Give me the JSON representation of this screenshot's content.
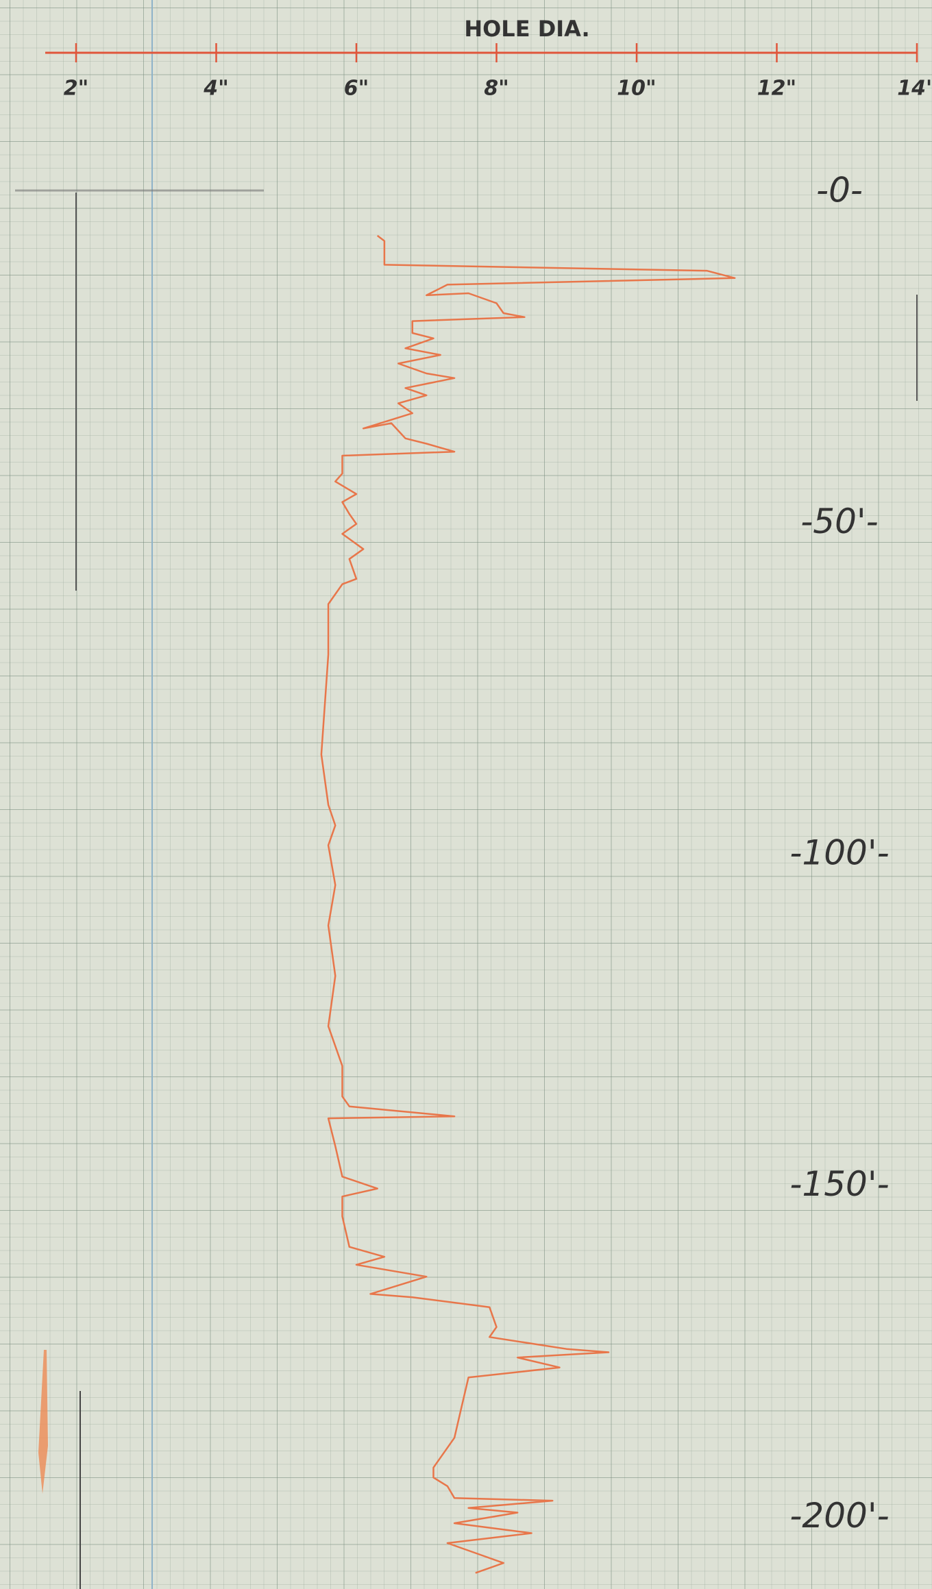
{
  "chart_data": {
    "type": "line",
    "x_label": "HOLE DIA.",
    "xlim": [
      2,
      14
    ],
    "xticks": [
      {
        "value": 2,
        "label": "2\""
      },
      {
        "value": 4,
        "label": "4\""
      },
      {
        "value": 6,
        "label": "6\""
      },
      {
        "value": 8,
        "label": "8\""
      },
      {
        "value": 10,
        "label": "10\""
      },
      {
        "value": 12,
        "label": "12\""
      },
      {
        "value": 14,
        "label": "14\""
      }
    ],
    "ylim": [
      0,
      210
    ],
    "y_inverted": true,
    "yticks": [
      {
        "value": 0,
        "label": "-0-"
      },
      {
        "value": 50,
        "label": "-50'-"
      },
      {
        "value": 100,
        "label": "-100'-"
      },
      {
        "value": 150,
        "label": "-150'-"
      },
      {
        "value": 200,
        "label": "-200'-"
      }
    ],
    "color": "#e8764a",
    "axis_color": "#e0553a",
    "x": [
      6.3,
      6.4,
      6.4,
      11.0,
      11.4,
      7.3,
      7.0,
      7.6,
      8.0,
      8.1,
      8.4,
      6.8,
      6.8,
      7.1,
      6.7,
      7.2,
      6.6,
      7.0,
      7.4,
      6.7,
      7.0,
      6.6,
      6.8,
      6.1,
      6.5,
      6.7,
      7.0,
      7.4,
      5.8,
      5.8,
      5.7,
      6.0,
      5.8,
      5.9,
      6.0,
      5.8,
      6.1,
      5.9,
      6.0,
      5.8,
      5.6,
      5.6,
      5.5,
      5.6,
      5.7,
      5.6,
      5.7,
      5.6,
      5.7,
      5.6,
      5.8,
      5.8,
      5.9,
      7.4,
      5.6,
      5.7,
      5.8,
      6.3,
      5.8,
      5.8,
      5.9,
      6.4,
      6.0,
      7.0,
      6.2,
      6.8,
      7.9,
      8.0,
      7.9,
      9.0,
      9.6,
      8.3,
      8.9,
      7.6,
      7.5,
      7.4,
      7.1,
      7.1,
      7.3,
      7.4,
      8.8,
      7.6,
      8.3,
      7.4,
      8.5,
      7.3,
      7.7,
      8.1,
      7.7
    ],
    "values": [
      6.5,
      7.3,
      10.9,
      11.8,
      12.9,
      13.9,
      15.5,
      15.2,
      16.7,
      18.2,
      18.8,
      19.4,
      21.2,
      22.0,
      23.5,
      24.5,
      25.8,
      27.3,
      28.0,
      29.5,
      30.6,
      31.8,
      33.3,
      35.6,
      34.8,
      37.1,
      37.9,
      39.1,
      39.7,
      42.4,
      43.6,
      45.5,
      46.7,
      48.5,
      50.0,
      51.5,
      53.8,
      55.3,
      58.3,
      59.1,
      62.1,
      69.7,
      84.8,
      92.4,
      95.5,
      98.5,
      104.5,
      110.6,
      118.2,
      125.8,
      131.8,
      136.4,
      137.9,
      139.4,
      139.7,
      143.9,
      148.5,
      150.3,
      151.5,
      154.5,
      159.1,
      160.6,
      161.8,
      163.6,
      166.2,
      166.7,
      168.2,
      171.2,
      172.7,
      174.5,
      175.0,
      175.8,
      177.3,
      178.8,
      183.3,
      187.9,
      192.4,
      193.9,
      195.2,
      197.0,
      197.4,
      198.5,
      199.2,
      200.8,
      202.3,
      203.8,
      205.3,
      206.8,
      208.3
    ]
  }
}
